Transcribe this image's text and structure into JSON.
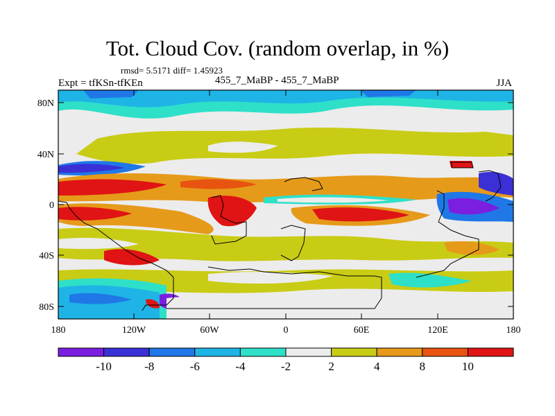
{
  "title": "Tot. Cloud Cov. (random overlap, in %)",
  "stats": "rmsd= 5.5171 diff= 1.45923",
  "expt": "Expt = tfKSn-tfKEn",
  "comparison": "455_7_MaBP - 455_7_MaBP",
  "season": "JJA",
  "x_ticks": [
    "180",
    "120W",
    "60W",
    "0",
    "60E",
    "120E",
    "180"
  ],
  "y_ticks": [
    "80N",
    "40N",
    "0",
    "40S",
    "80S"
  ],
  "colorbar": {
    "labels": [
      "-10",
      "-8",
      "-6",
      "-4",
      "-2",
      "2",
      "4",
      "8",
      "10"
    ],
    "colors": [
      "#7a1fe0",
      "#3b2fd6",
      "#1f78e6",
      "#1fb4e6",
      "#2ee0c8",
      "#ececec",
      "#c9cc14",
      "#e69a1a",
      "#e8540f",
      "#e01414"
    ]
  }
}
